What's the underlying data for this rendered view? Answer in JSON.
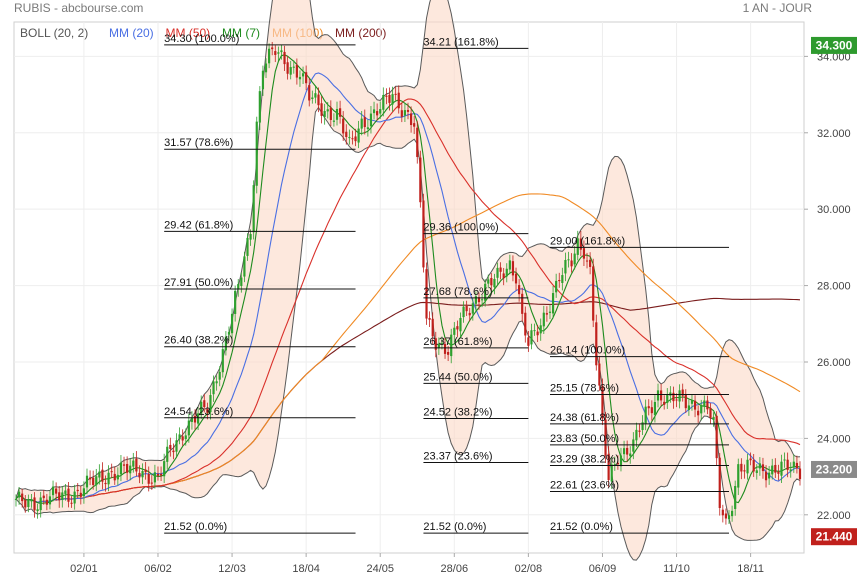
{
  "header": {
    "title": "RUBIS - abcbourse.com",
    "period": "1 AN - JOUR"
  },
  "legend": [
    {
      "label": "BOLL (20, 2)",
      "color": "#555555"
    },
    {
      "label": "MM (20)",
      "color": "#4a6fe3"
    },
    {
      "label": "MM (50)",
      "color": "#d9302a"
    },
    {
      "label": "MM (7)",
      "color": "#1e8b1e"
    },
    {
      "label": "MM (100)",
      "color": "#f08a24"
    },
    {
      "label": "MM (200)",
      "color": "#7a1c1c"
    }
  ],
  "badges": {
    "top": {
      "label": "34.300",
      "color": "#2e9a2e"
    },
    "last": {
      "label": "23.200",
      "color": "#8a8a8a"
    },
    "bottom": {
      "label": "21.440",
      "color": "#c0201c"
    }
  },
  "chart_data": {
    "type": "line",
    "title": "RUBIS",
    "ylim": [
      21.0,
      34.9
    ],
    "y_ticks": [
      "22.000",
      "24.000",
      "26.000",
      "28.000",
      "30.000",
      "32.000",
      "34.000"
    ],
    "y_tick_values": [
      22,
      24,
      26,
      28,
      30,
      32,
      34
    ],
    "x_ticks": [
      "02/01",
      "06/02",
      "12/03",
      "18/04",
      "24/05",
      "28/06",
      "02/08",
      "06/09",
      "11/10",
      "18/11"
    ],
    "x_tick_index": [
      22,
      46,
      70,
      94,
      118,
      142,
      166,
      190,
      214,
      238
    ],
    "n_bars": 255,
    "price_anchors": [
      [
        0,
        22.3
      ],
      [
        10,
        22.4
      ],
      [
        20,
        22.6
      ],
      [
        30,
        23.1
      ],
      [
        40,
        23.2
      ],
      [
        46,
        22.9
      ],
      [
        50,
        23.7
      ],
      [
        55,
        24.3
      ],
      [
        62,
        24.8
      ],
      [
        68,
        26.6
      ],
      [
        72,
        27.9
      ],
      [
        76,
        29.5
      ],
      [
        78,
        32.3
      ],
      [
        80,
        33.8
      ],
      [
        84,
        34.1
      ],
      [
        88,
        33.8
      ],
      [
        92,
        33.6
      ],
      [
        95,
        32.9
      ],
      [
        100,
        32.6
      ],
      [
        104,
        32.5
      ],
      [
        108,
        31.6
      ],
      [
        112,
        32.3
      ],
      [
        118,
        32.6
      ],
      [
        122,
        33.0
      ],
      [
        126,
        32.6
      ],
      [
        129,
        32.2
      ],
      [
        131,
        30.0
      ],
      [
        133,
        27.1
      ],
      [
        136,
        26.6
      ],
      [
        140,
        26.3
      ],
      [
        144,
        27.1
      ],
      [
        148,
        27.6
      ],
      [
        152,
        27.9
      ],
      [
        156,
        28.2
      ],
      [
        160,
        28.6
      ],
      [
        162,
        28.3
      ],
      [
        164,
        27.1
      ],
      [
        166,
        26.4
      ],
      [
        170,
        27.0
      ],
      [
        173,
        27.6
      ],
      [
        176,
        28.2
      ],
      [
        180,
        28.6
      ],
      [
        182,
        29.1
      ],
      [
        184,
        29.0
      ],
      [
        186,
        28.4
      ],
      [
        188,
        26.0
      ],
      [
        190,
        24.3
      ],
      [
        192,
        22.9
      ],
      [
        195,
        23.6
      ],
      [
        200,
        23.8
      ],
      [
        204,
        24.6
      ],
      [
        208,
        25.2
      ],
      [
        212,
        25.0
      ],
      [
        216,
        25.0
      ],
      [
        220,
        24.9
      ],
      [
        224,
        24.8
      ],
      [
        226,
        24.3
      ],
      [
        228,
        22.3
      ],
      [
        230,
        21.8
      ],
      [
        232,
        22.4
      ],
      [
        234,
        23.2
      ]
    ],
    "series": [
      {
        "name": "BOLL (20, 2)",
        "color": "#555555"
      },
      {
        "name": "MM (20)",
        "color": "#4a6fe3"
      },
      {
        "name": "MM (50)",
        "color": "#d9302a"
      },
      {
        "name": "MM (7)",
        "color": "#1e8b1e"
      },
      {
        "name": "MM (100)",
        "color": "#f08a24"
      },
      {
        "name": "MM (200)",
        "color": "#7a1c1c"
      }
    ],
    "fib_levels": [
      {
        "start": 48,
        "end": 110,
        "value": 34.3,
        "label": "34.30  (100.0%)"
      },
      {
        "start": 48,
        "end": 110,
        "value": 31.57,
        "label": "31.57  (78.6%)"
      },
      {
        "start": 48,
        "end": 110,
        "value": 29.42,
        "label": "29.42  (61.8%)"
      },
      {
        "start": 48,
        "end": 110,
        "value": 27.91,
        "label": "27.91  (50.0%)"
      },
      {
        "start": 48,
        "end": 110,
        "value": 26.4,
        "label": "26.40  (38.2%)"
      },
      {
        "start": 48,
        "end": 110,
        "value": 24.54,
        "label": "24.54  (23.6%)"
      },
      {
        "start": 48,
        "end": 110,
        "value": 21.52,
        "label": "21.52  (0.0%)"
      },
      {
        "start": 132,
        "end": 166,
        "value": 34.21,
        "label": "34.21  (161.8%)"
      },
      {
        "start": 132,
        "end": 166,
        "value": 29.36,
        "label": "29.36  (100.0%)"
      },
      {
        "start": 132,
        "end": 166,
        "value": 27.68,
        "label": "27.68  (78.6%)"
      },
      {
        "start": 132,
        "end": 166,
        "value": 26.37,
        "label": "26.37  (61.8%)"
      },
      {
        "start": 132,
        "end": 166,
        "value": 25.44,
        "label": "25.44  (50.0%)"
      },
      {
        "start": 132,
        "end": 166,
        "value": 24.52,
        "label": "24.52  (38.2%)"
      },
      {
        "start": 132,
        "end": 166,
        "value": 23.37,
        "label": "23.37  (23.6%)"
      },
      {
        "start": 132,
        "end": 166,
        "value": 21.52,
        "label": "21.52  (0.0%)"
      },
      {
        "start": 173,
        "end": 231,
        "value": 29.0,
        "label": "29.00  (161.8%)"
      },
      {
        "start": 173,
        "end": 231,
        "value": 26.14,
        "label": "26.14  (100.0%)"
      },
      {
        "start": 173,
        "end": 231,
        "value": 25.15,
        "label": "25.15  (78.6%)"
      },
      {
        "start": 173,
        "end": 231,
        "value": 24.38,
        "label": "24.38  (61.8%)"
      },
      {
        "start": 173,
        "end": 231,
        "value": 23.83,
        "label": "23.83  (50.0%)"
      },
      {
        "start": 173,
        "end": 231,
        "value": 23.29,
        "label": "23.29  (38.2%)"
      },
      {
        "start": 173,
        "end": 231,
        "value": 22.61,
        "label": "22.61  (23.6%)"
      },
      {
        "start": 173,
        "end": 231,
        "value": 21.52,
        "label": "21.52  (0.0%)"
      }
    ]
  }
}
